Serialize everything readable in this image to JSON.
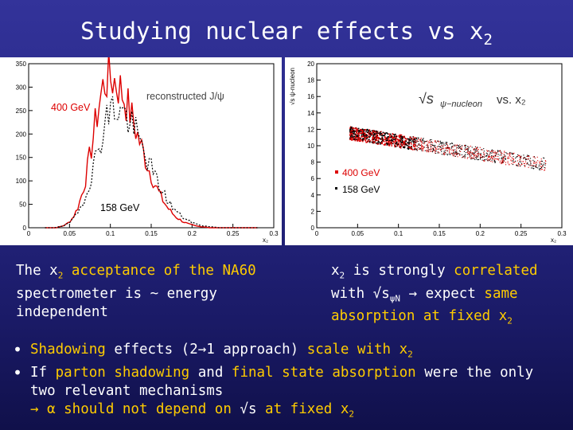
{
  "slide": {
    "title_main": "Studying nuclear effects vs x",
    "title_sub": "2"
  },
  "colors": {
    "highlight": "#ffcc00",
    "series_400": "#dd0000",
    "series_158": "#000000"
  },
  "left_plot": {
    "legend_title": "reconstructed J/ψ",
    "label_400": "400 GeV",
    "label_158": "158 GeV",
    "x_axis_label": "x₂",
    "y_ticks": [
      "0",
      "50",
      "100",
      "150",
      "200",
      "250",
      "300",
      "350"
    ],
    "x_ticks": [
      "0",
      "0.05",
      "0.1",
      "0.15",
      "0.2",
      "0.25",
      "0.3"
    ]
  },
  "right_plot": {
    "y_axis_label": "√s ψ-nucleon",
    "title_sqrt": "√s",
    "title_sub": "ψ−nucleon",
    "title_vs": "vs.  x₂",
    "legend_400": "400 GeV",
    "legend_158": "158 GeV",
    "x_axis_label": "x₂",
    "y_ticks": [
      "0",
      "2",
      "4",
      "6",
      "8",
      "10",
      "12",
      "14",
      "16",
      "18",
      "20"
    ],
    "x_ticks": [
      "0",
      "0.05",
      "0.1",
      "0.15",
      "0.2",
      "0.25",
      "0.3"
    ]
  },
  "text_left": {
    "p1": "The x",
    "p1_sub": "2",
    "p2": "acceptance of the NA60",
    "p3": "spectrometer is ~ energy",
    "p4": "independent"
  },
  "text_right": {
    "p1": "x",
    "p1_sub": "2",
    "p2": "is strongly",
    "p3": "correlated",
    "p4": "with √s",
    "p4_sub": "ψN",
    "p5": "→ expect",
    "p6": "same",
    "p7": "absorption at fixed x",
    "p7_sub": "2"
  },
  "bullets": {
    "b1_a": "Shadowing",
    "b1_b": "effects (2→1 approach)",
    "b1_c": "scale with x",
    "b1_sub": "2",
    "b2_a": "If",
    "b2_b": "parton shadowing",
    "b2_c": "and",
    "b2_d": "final state absorption",
    "b2_e": "were the only",
    "b2_line2": "two relevant mechanisms",
    "b2_line3_a": "→ α should not depend on",
    "b2_line3_b": "√s",
    "b2_line3_c": "at fixed x",
    "b2_line3_sub": "2"
  }
}
